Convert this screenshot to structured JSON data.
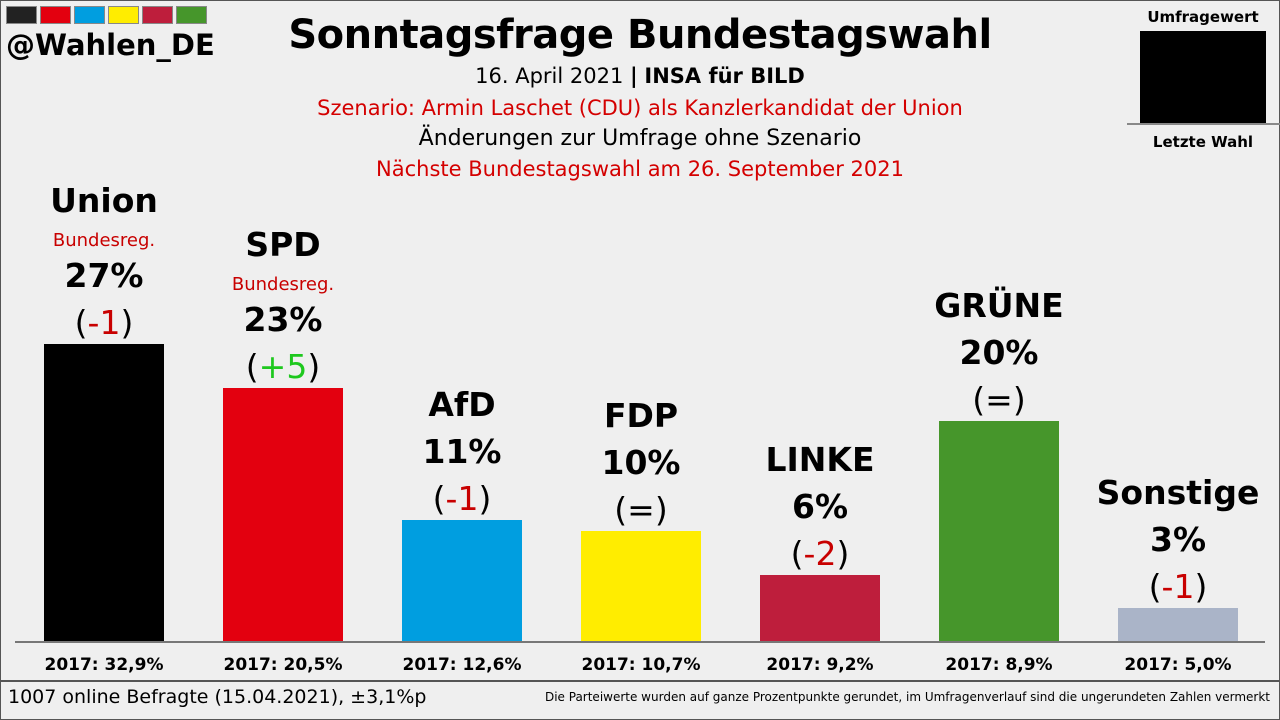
{
  "header": {
    "colorbar": [
      "#222222",
      "#e3000f",
      "#009ee0",
      "#ffed00",
      "#be1e3c",
      "#46962b"
    ],
    "handle": "@Wahlen_DE",
    "title": "Sonntagsfrage Bundestagswahl",
    "date": "16. April 2021",
    "separator": "|",
    "institute": "INSA für BILD",
    "scenario": "Szenario: Armin Laschet (CDU)  als Kanzlerkandidat der Union",
    "changes": "Änderungen zur Umfrage ohne Szenario",
    "next_election": "Nächste Bundestagswahl am 26. September 2021"
  },
  "legend": {
    "top": "Umfragewert",
    "bottom": "Letzte Wahl"
  },
  "footer": {
    "left": "1007 online Befragte (15.04.2021), ±3,1%p",
    "right": "Die Parteiwerte wurden auf ganze Prozentpunkte gerundet, im Umfragenverlauf sind die ungerundeten Zahlen vermerkt"
  },
  "chart_data": {
    "type": "bar",
    "categories": [
      "Union",
      "SPD",
      "AfD",
      "FDP",
      "LINKE",
      "GRÜNE",
      "Sonstige"
    ],
    "values": [
      27,
      23,
      11,
      10,
      6,
      20,
      3
    ],
    "value_labels": [
      "27%",
      "23%",
      "11%",
      "10%",
      "6%",
      "20%",
      "3%"
    ],
    "changes": [
      "-1",
      "+5",
      "-1",
      "=",
      "-2",
      "=",
      "-1"
    ],
    "tags": [
      "Bundesreg.",
      "Bundesreg.",
      "",
      "",
      "",
      "",
      ""
    ],
    "colors": [
      "#000000",
      "#e3000f",
      "#009ee0",
      "#ffed00",
      "#be1e3c",
      "#46962b",
      "#aab4c8"
    ],
    "change_colors": {
      "up": "#1ec81e",
      "down": "#c80000",
      "neutral": "#000000"
    },
    "previous_election": [
      "2017: 32,9%",
      "2017: 20,5%",
      "2017: 12,6%",
      "2017: 10,7%",
      "2017: 9,2%",
      "2017: 8,9%",
      "2017: 5,0%"
    ],
    "ylim": [
      0,
      36
    ],
    "grid": false
  }
}
